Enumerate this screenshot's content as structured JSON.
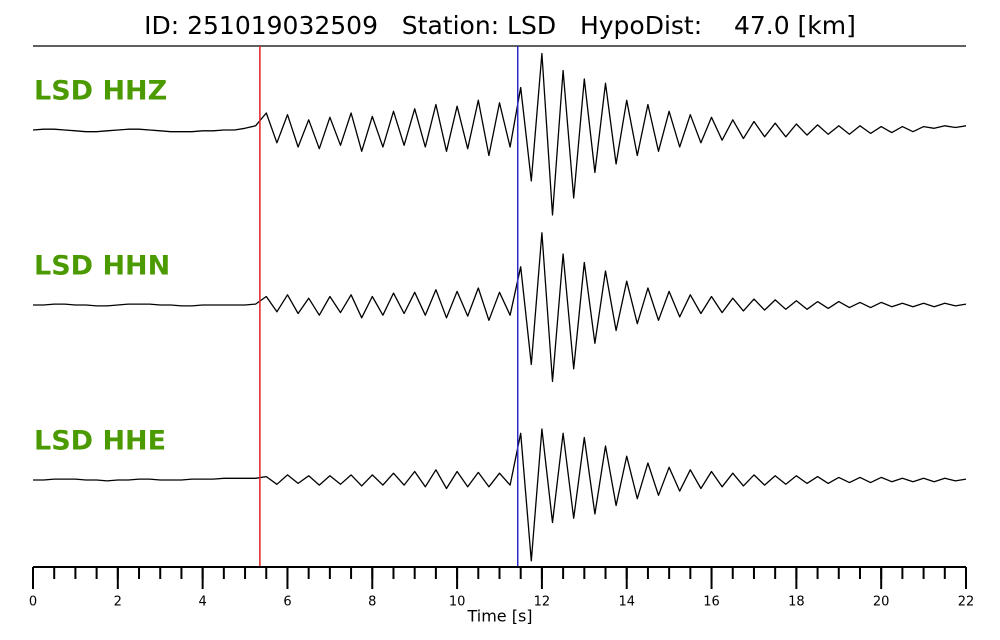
{
  "chart_data": {
    "type": "seismogram",
    "title": "ID: 251019032509   Station: LSD   HypoDist:    47.0 [km]",
    "xlabel": "Time [s]",
    "xlim": [
      0,
      22
    ],
    "xticks": [
      0,
      2,
      4,
      6,
      8,
      10,
      12,
      14,
      16,
      18,
      20,
      22
    ],
    "xminorticks": [
      0,
      0.5,
      1,
      1.5,
      2,
      2.5,
      3,
      3.5,
      4,
      4.5,
      5,
      5.5,
      6,
      6.5,
      7,
      7.5,
      8,
      8.5,
      9,
      9.5,
      10,
      10.5,
      11,
      11.5,
      12,
      12.5,
      13,
      13.5,
      14,
      14.5,
      15,
      15.5,
      16,
      16.5,
      17,
      17.5,
      18,
      18.5,
      19,
      19.5,
      20,
      20.5,
      21,
      21.5,
      22
    ],
    "ylim": [
      -1,
      1
    ],
    "label_color": "#4a9a00",
    "markers": [
      {
        "x": 5.35,
        "color": "#e02020"
      },
      {
        "x": 11.43,
        "color": "#2a2ac8"
      }
    ],
    "x": [
      0,
      0.25,
      0.5,
      0.75,
      1,
      1.25,
      1.5,
      1.75,
      2,
      2.25,
      2.5,
      2.75,
      3,
      3.25,
      3.5,
      3.75,
      4,
      4.25,
      4.5,
      4.75,
      5,
      5.25,
      5.5,
      5.75,
      6,
      6.25,
      6.5,
      6.75,
      7,
      7.25,
      7.5,
      7.75,
      8,
      8.25,
      8.5,
      8.75,
      9,
      9.25,
      9.5,
      9.75,
      10,
      10.25,
      10.5,
      10.75,
      11,
      11.25,
      11.5,
      11.75,
      12,
      12.25,
      12.5,
      12.75,
      13,
      13.25,
      13.5,
      13.75,
      14,
      14.25,
      14.5,
      14.75,
      15,
      15.25,
      15.5,
      15.75,
      16,
      16.25,
      16.5,
      16.75,
      17,
      17.25,
      17.5,
      17.75,
      18,
      18.25,
      18.5,
      18.75,
      19,
      19.25,
      19.5,
      19.75,
      20,
      20.25,
      20.5,
      20.75,
      21,
      21.25,
      21.5,
      21.75,
      22
    ],
    "series": [
      {
        "name": "LSD HHZ",
        "color": "#000000",
        "values": [
          0,
          0.01,
          0.01,
          0,
          -0.01,
          -0.02,
          -0.02,
          -0.01,
          0,
          0.01,
          0.01,
          0,
          -0.01,
          -0.02,
          -0.02,
          -0.02,
          -0.01,
          -0.01,
          0,
          0,
          0.02,
          0.05,
          0.2,
          -0.15,
          0.18,
          -0.2,
          0.12,
          -0.22,
          0.15,
          -0.18,
          0.2,
          -0.25,
          0.16,
          -0.2,
          0.22,
          -0.18,
          0.25,
          -0.2,
          0.3,
          -0.25,
          0.28,
          -0.22,
          0.35,
          -0.3,
          0.32,
          -0.2,
          0.5,
          -0.6,
          0.9,
          -1.0,
          0.7,
          -0.8,
          0.6,
          -0.5,
          0.55,
          -0.4,
          0.35,
          -0.3,
          0.3,
          -0.25,
          0.22,
          -0.2,
          0.18,
          -0.15,
          0.15,
          -0.12,
          0.12,
          -0.1,
          0.1,
          -0.08,
          0.08,
          -0.08,
          0.07,
          -0.06,
          0.06,
          -0.05,
          0.05,
          -0.05,
          0.05,
          -0.04,
          0.04,
          -0.03,
          0.04,
          -0.02,
          0.04,
          0.02,
          0.05,
          0.03,
          0.05
        ]
      },
      {
        "name": "LSD HHN",
        "color": "#000000",
        "values": [
          0,
          0,
          0.01,
          0.01,
          0,
          0,
          -0.01,
          -0.01,
          0,
          0.01,
          0.01,
          0.01,
          0,
          0,
          -0.01,
          -0.01,
          0,
          0,
          0,
          0,
          0,
          0.01,
          0.1,
          -0.08,
          0.12,
          -0.1,
          0.08,
          -0.12,
          0.1,
          -0.09,
          0.12,
          -0.15,
          0.1,
          -0.12,
          0.14,
          -0.1,
          0.15,
          -0.12,
          0.18,
          -0.15,
          0.16,
          -0.13,
          0.2,
          -0.18,
          0.15,
          -0.12,
          0.45,
          -0.7,
          0.85,
          -0.9,
          0.6,
          -0.75,
          0.5,
          -0.45,
          0.4,
          -0.3,
          0.28,
          -0.22,
          0.2,
          -0.18,
          0.16,
          -0.14,
          0.12,
          -0.1,
          0.1,
          -0.09,
          0.08,
          -0.07,
          0.07,
          -0.06,
          0.06,
          -0.05,
          0.05,
          -0.05,
          0.04,
          -0.04,
          0.04,
          -0.03,
          0.03,
          -0.03,
          0.03,
          -0.02,
          0.02,
          -0.02,
          0.02,
          -0.02,
          0.02,
          -0.01,
          0.01
        ]
      },
      {
        "name": "LSD HHE",
        "color": "#000000",
        "values": [
          0,
          0,
          0.01,
          0.01,
          0.01,
          0,
          0,
          -0.01,
          0,
          0,
          0.01,
          0.01,
          0,
          0,
          0,
          0.01,
          0.01,
          0.01,
          0.02,
          0.02,
          0.02,
          0.02,
          0.04,
          -0.05,
          0.06,
          -0.04,
          0.05,
          -0.06,
          0.05,
          -0.05,
          0.06,
          -0.07,
          0.06,
          -0.06,
          0.08,
          -0.06,
          0.1,
          -0.08,
          0.12,
          -0.1,
          0.1,
          -0.08,
          0.09,
          -0.08,
          0.08,
          -0.06,
          0.55,
          -0.95,
          0.6,
          -0.5,
          0.55,
          -0.45,
          0.5,
          -0.4,
          0.4,
          -0.3,
          0.28,
          -0.22,
          0.2,
          -0.18,
          0.15,
          -0.13,
          0.12,
          -0.1,
          0.1,
          -0.08,
          0.08,
          -0.07,
          0.06,
          -0.06,
          0.05,
          -0.05,
          0.05,
          -0.04,
          0.04,
          -0.04,
          0.03,
          -0.03,
          0.03,
          -0.03,
          0.03,
          -0.02,
          0.02,
          -0.02,
          0.02,
          -0.02,
          0.02,
          -0.01,
          0.01
        ]
      }
    ]
  }
}
